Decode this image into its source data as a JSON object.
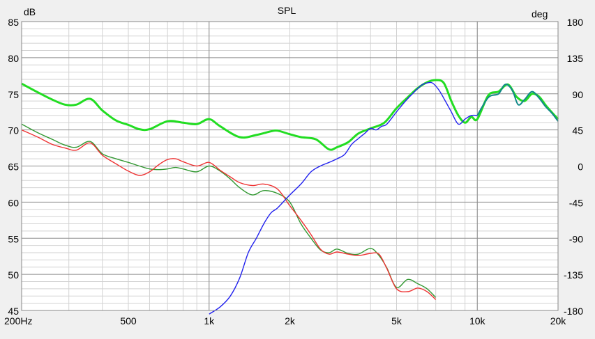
{
  "chart_data": {
    "type": "line",
    "title": "SPL",
    "left_axis": {
      "unit_label": "dB",
      "range": [
        45,
        85
      ],
      "ticks": [
        85,
        80,
        75,
        70,
        65,
        60,
        55,
        50,
        45
      ]
    },
    "right_axis": {
      "unit_label": "deg",
      "range": [
        -180,
        180
      ],
      "ticks": [
        180,
        135,
        90,
        45,
        0,
        -45,
        -90,
        -135,
        -180
      ]
    },
    "x_axis": {
      "scale": "log",
      "range": [
        200,
        20000
      ],
      "tick_values": [
        200,
        500,
        1000,
        2000,
        5000,
        10000,
        20000
      ],
      "tick_labels": [
        "200Hz",
        "500",
        "1k",
        "2k",
        "5k",
        "10k",
        "20k"
      ]
    },
    "grid": true,
    "colors": {
      "background": "#f0f0f0",
      "plot_background": "#ffffff",
      "major_grid": "#8c8c8c",
      "minor_grid": "#d2d2d2",
      "sum": "#22dd22",
      "low": "#ee3333",
      "low_alt": "#339933",
      "high": "#2222ee",
      "high_alt": "#118888"
    },
    "series": [
      {
        "key": "low",
        "axis": "left",
        "x": [
          200,
          230,
          260,
          290,
          320,
          360,
          400,
          450,
          500,
          550,
          600,
          650,
          700,
          750,
          800,
          900,
          1000,
          1100,
          1200,
          1300,
          1450,
          1600,
          1800,
          2000,
          2200,
          2400,
          2600,
          2800,
          3000,
          3300,
          3600,
          4000,
          4300,
          4600,
          5000,
          5500,
          6000,
          6500,
          7000
        ],
        "y": [
          70,
          69,
          68,
          67.5,
          67.2,
          68.2,
          66.5,
          65.3,
          64.3,
          63.7,
          64.2,
          65.2,
          65.9,
          66.0,
          65.6,
          65.0,
          65.5,
          64.4,
          63.5,
          62.7,
          62.3,
          62.5,
          61.8,
          59.5,
          57.5,
          55.5,
          53.5,
          52.8,
          53.1,
          52.8,
          52.6,
          52.9,
          52.8,
          50.8,
          48.0,
          47.6,
          48.1,
          47.6,
          46.5
        ]
      },
      {
        "key": "low_alt",
        "axis": "left",
        "x": [
          200,
          230,
          260,
          290,
          320,
          360,
          400,
          450,
          500,
          550,
          600,
          650,
          700,
          750,
          800,
          900,
          1000,
          1100,
          1200,
          1300,
          1450,
          1600,
          1800,
          2000,
          2200,
          2400,
          2600,
          2800,
          3000,
          3300,
          3600,
          4000,
          4300,
          4600,
          5000,
          5500,
          6000,
          6500,
          7000
        ],
        "y": [
          70.8,
          69.6,
          68.7,
          67.9,
          67.6,
          68.4,
          66.7,
          66.0,
          65.5,
          65.0,
          64.6,
          64.5,
          64.6,
          64.8,
          64.6,
          64.2,
          65.0,
          64.3,
          63.2,
          62.0,
          61.0,
          61.6,
          61.2,
          60.0,
          57.0,
          55.0,
          53.4,
          53.0,
          53.5,
          52.9,
          52.8,
          53.6,
          52.6,
          50.9,
          48.2,
          49.3,
          48.7,
          48.0,
          46.8
        ]
      },
      {
        "key": "sum",
        "axis": "left",
        "x": [
          200,
          230,
          260,
          290,
          320,
          360,
          400,
          450,
          500,
          550,
          600,
          700,
          800,
          900,
          1000,
          1100,
          1300,
          1500,
          1700,
          1800,
          2000,
          2200,
          2500,
          2800,
          3000,
          3300,
          3600,
          4000,
          4500,
          5000,
          5500,
          6000,
          6500,
          7000,
          7500,
          8000,
          8500,
          9000,
          9500,
          10000,
          11000,
          12000,
          13000,
          14000,
          15000,
          16000,
          17000,
          18000,
          19000,
          20000
        ],
        "y": [
          76.4,
          75.2,
          74.2,
          73.5,
          73.5,
          74.3,
          72.7,
          71.3,
          70.7,
          70.1,
          70.1,
          71.2,
          71.0,
          70.8,
          71.5,
          70.5,
          69.0,
          69.3,
          69.8,
          69.9,
          69.4,
          69.0,
          68.7,
          67.3,
          67.6,
          68.3,
          69.5,
          70.2,
          71.0,
          73.0,
          74.5,
          75.8,
          76.6,
          76.9,
          76.5,
          74.0,
          72.0,
          71.0,
          71.8,
          71.5,
          74.8,
          75.3,
          76.3,
          74.6,
          74.0,
          75.0,
          74.6,
          73.4,
          72.4,
          71.5
        ]
      },
      {
        "key": "high",
        "axis": "left",
        "x": [
          1000,
          1100,
          1200,
          1300,
          1400,
          1500,
          1600,
          1700,
          1800,
          2000,
          2200,
          2400,
          2600,
          2800,
          3000,
          3200,
          3400,
          3600,
          3800,
          4000,
          4200,
          4400,
          4600,
          5000,
          5400,
          5800,
          6200,
          6500,
          6800,
          7200,
          7600,
          8000,
          8500,
          9000,
          9500,
          10000
        ],
        "y": [
          44.5,
          45.5,
          47.0,
          49.5,
          53.0,
          55.0,
          57.0,
          58.5,
          59.2,
          61.0,
          62.5,
          64.2,
          65.0,
          65.5,
          66.0,
          66.6,
          68.0,
          68.8,
          69.5,
          70.2,
          70.0,
          70.5,
          70.8,
          72.5,
          74.0,
          75.2,
          76.2,
          76.5,
          76.5,
          75.5,
          74.0,
          72.5,
          70.8,
          71.5,
          72.0,
          72.0
        ]
      },
      {
        "key": "high_alt",
        "axis": "left",
        "x": [
          10000,
          11000,
          12000,
          12700,
          13500,
          14200,
          15000,
          16000,
          17000,
          18000,
          19000,
          20000
        ],
        "y": [
          72.0,
          74.5,
          75.0,
          76.3,
          75.5,
          73.5,
          74.2,
          75.3,
          74.4,
          73.2,
          72.3,
          71.2
        ]
      }
    ]
  }
}
